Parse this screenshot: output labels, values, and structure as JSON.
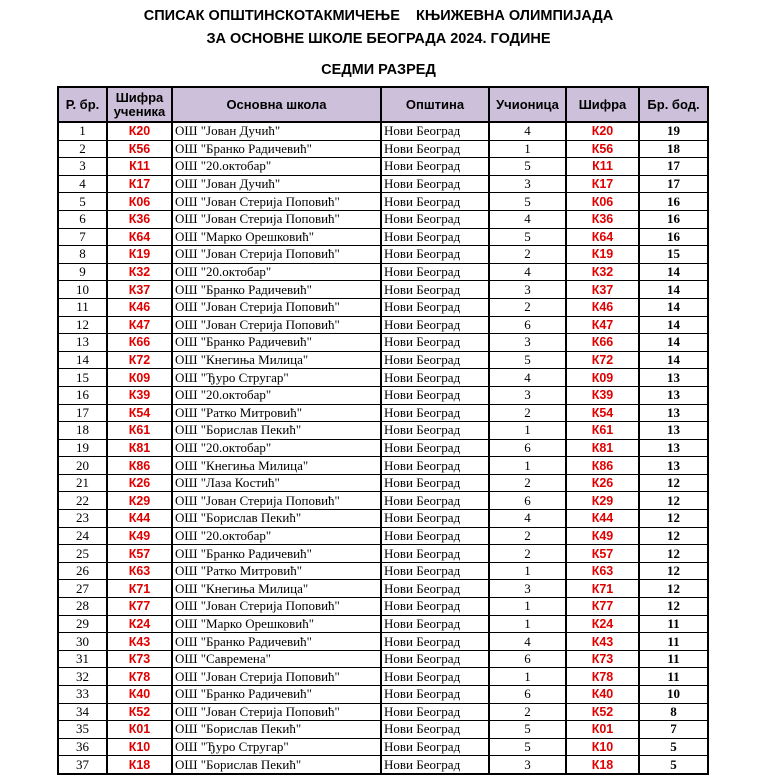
{
  "title_line1": "СПИСАК ОПШТИНСКОТАКМИЧЕЊЕ    КЊИЖЕВНА ОЛИМПИЈАДА",
  "title_line2": "ЗА ОСНОВНЕ ШКОЛЕ БЕОГРАДА 2024. ГОДИНЕ",
  "grade": "СЕДМИ РАЗРЕД",
  "code_color": "#e00000",
  "header_color": "#ccc0da",
  "columns": [
    "Р. бр.",
    "Шифра ученика",
    "Основна школа",
    "Општина",
    "Учионица",
    "Шифра",
    "Бр. бод."
  ],
  "rows": [
    [
      "1",
      "К20",
      "ОШ \"Јован Дучић\"",
      "Нови Београд",
      "4",
      "К20",
      "19"
    ],
    [
      "2",
      "К56",
      "ОШ \"Бранко Радичевић\"",
      "Нови Београд",
      "1",
      "К56",
      "18"
    ],
    [
      "3",
      "К11",
      "ОШ \"20.октобар\"",
      "Нови Београд",
      "5",
      "К11",
      "17"
    ],
    [
      "4",
      "К17",
      "ОШ \"Јован Дучић\"",
      "Нови Београд",
      "3",
      "К17",
      "17"
    ],
    [
      "5",
      "К06",
      "ОШ \"Јован Стерија Поповић\"",
      "Нови Београд",
      "5",
      "К06",
      "16"
    ],
    [
      "6",
      "К36",
      "ОШ \"Јован Стерија Поповић\"",
      "Нови Београд",
      "4",
      "К36",
      "16"
    ],
    [
      "7",
      "К64",
      "ОШ \"Марко Орешковић\"",
      "Нови Београд",
      "5",
      "К64",
      "16"
    ],
    [
      "8",
      "К19",
      "ОШ \"Јован Стерија Поповић\"",
      "Нови Београд",
      "2",
      "К19",
      "15"
    ],
    [
      "9",
      "К32",
      "ОШ \"20.октобар\"",
      "Нови Београд",
      "4",
      "К32",
      "14"
    ],
    [
      "10",
      "К37",
      "ОШ \"Бранко Радичевић\"",
      "Нови Београд",
      "3",
      "К37",
      "14"
    ],
    [
      "11",
      "К46",
      "ОШ \"Јован Стерија Поповић\"",
      "Нови Београд",
      "2",
      "К46",
      "14"
    ],
    [
      "12",
      "К47",
      "ОШ \"Јован Стерија Поповић\"",
      "Нови Београд",
      "6",
      "К47",
      "14"
    ],
    [
      "13",
      "К66",
      "ОШ \"Бранко Радичевић\"",
      "Нови Београд",
      "3",
      "К66",
      "14"
    ],
    [
      "14",
      "К72",
      "ОШ \"Кнегиња Милица\"",
      "Нови Београд",
      "5",
      "К72",
      "14"
    ],
    [
      "15",
      "К09",
      "ОШ \"Ђуро Стругар\"",
      "Нови Београд",
      "4",
      "К09",
      "13"
    ],
    [
      "16",
      "К39",
      "ОШ \"20.октобар\"",
      "Нови Београд",
      "3",
      "К39",
      "13"
    ],
    [
      "17",
      "К54",
      "ОШ \"Ратко Митровић\"",
      "Нови Београд",
      "2",
      "К54",
      "13"
    ],
    [
      "18",
      "К61",
      "ОШ \"Борислав Пекић\"",
      "Нови Београд",
      "1",
      "К61",
      "13"
    ],
    [
      "19",
      "К81",
      "ОШ \"20.октобар\"",
      "Нови Београд",
      "6",
      "К81",
      "13"
    ],
    [
      "20",
      "К86",
      "ОШ \"Кнегиња Милица\"",
      "Нови Београд",
      "1",
      "К86",
      "13"
    ],
    [
      "21",
      "К26",
      "ОШ \"Лаза Костић\"",
      "Нови Београд",
      "2",
      "К26",
      "12"
    ],
    [
      "22",
      "К29",
      "ОШ \"Јован Стерија Поповић\"",
      "Нови Београд",
      "6",
      "К29",
      "12"
    ],
    [
      "23",
      "К44",
      "ОШ \"Борислав Пекић\"",
      "Нови Београд",
      "4",
      "К44",
      "12"
    ],
    [
      "24",
      "К49",
      "ОШ \"20.октобар\"",
      "Нови Београд",
      "2",
      "К49",
      "12"
    ],
    [
      "25",
      "К57",
      "ОШ \"Бранко Радичевић\"",
      "Нови Београд",
      "2",
      "К57",
      "12"
    ],
    [
      "26",
      "К63",
      "ОШ \"Ратко Митровић\"",
      "Нови Београд",
      "1",
      "К63",
      "12"
    ],
    [
      "27",
      "К71",
      "ОШ \"Кнегиња Милица\"",
      "Нови Београд",
      "3",
      "К71",
      "12"
    ],
    [
      "28",
      "К77",
      "ОШ \"Јован Стерија Поповић\"",
      "Нови Београд",
      "1",
      "К77",
      "12"
    ],
    [
      "29",
      "К24",
      "ОШ \"Марко Орешковић\"",
      "Нови Београд",
      "1",
      "К24",
      "11"
    ],
    [
      "30",
      "К43",
      "ОШ \"Бранко Радичевић\"",
      "Нови Београд",
      "4",
      "К43",
      "11"
    ],
    [
      "31",
      "К73",
      "ОШ \"Савремена\"",
      "Нови Београд",
      "6",
      "К73",
      "11"
    ],
    [
      "32",
      "К78",
      "ОШ \"Јован Стерија Поповић\"",
      "Нови Београд",
      "1",
      "К78",
      "11"
    ],
    [
      "33",
      "К40",
      "ОШ \"Бранко Радичевић\"",
      "Нови Београд",
      "6",
      "К40",
      "10"
    ],
    [
      "34",
      "К52",
      "ОШ \"Јован Стерија Поповић\"",
      "Нови Београд",
      "2",
      "К52",
      "8"
    ],
    [
      "35",
      "К01",
      "ОШ \"Борислав Пекић\"",
      "Нови Београд",
      "5",
      "К01",
      "7"
    ],
    [
      "36",
      "К10",
      "ОШ \"Ђуро Стругар\"",
      "Нови Београд",
      "5",
      "К10",
      "5"
    ],
    [
      "37",
      "К18",
      "ОШ \"Борислав Пекић\"",
      "Нови Београд",
      "3",
      "К18",
      "5"
    ]
  ]
}
